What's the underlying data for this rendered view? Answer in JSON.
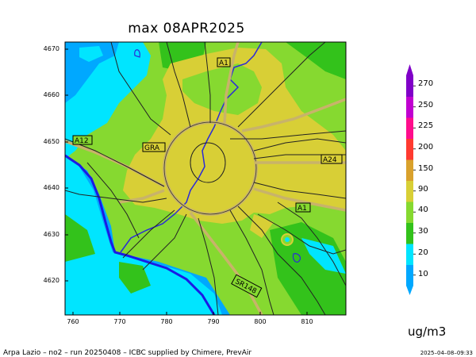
{
  "title": "max 08APR2025",
  "y_ticks": [
    "4670",
    "4660",
    "4650",
    "4640",
    "4630",
    "4620"
  ],
  "x_ticks": [
    "760",
    "770",
    "780",
    "790",
    "800",
    "810"
  ],
  "road_labels": {
    "a1_north": "A1",
    "a12": "A12",
    "gra": "GRA",
    "a24": "A24",
    "a1_east": "A1",
    "sr148": "SR148"
  },
  "colorbar": {
    "levels": [
      "10",
      "20",
      "30",
      "40",
      "90",
      "150",
      "200",
      "225",
      "250",
      "270"
    ],
    "colors": [
      "#00a8ff",
      "#00e5ff",
      "#33c21b",
      "#86d930",
      "#d8cf36",
      "#d9a12c",
      "#ff3a30",
      "#ff0d8c",
      "#c000d0",
      "#8000c8"
    ],
    "units": "ug/m3"
  },
  "footer": {
    "left": "Arpa Lazio – no2 – run 20250408 – ICBC supplied by Chimere, PrevAir",
    "right": "2025–04–08–09:33"
  }
}
